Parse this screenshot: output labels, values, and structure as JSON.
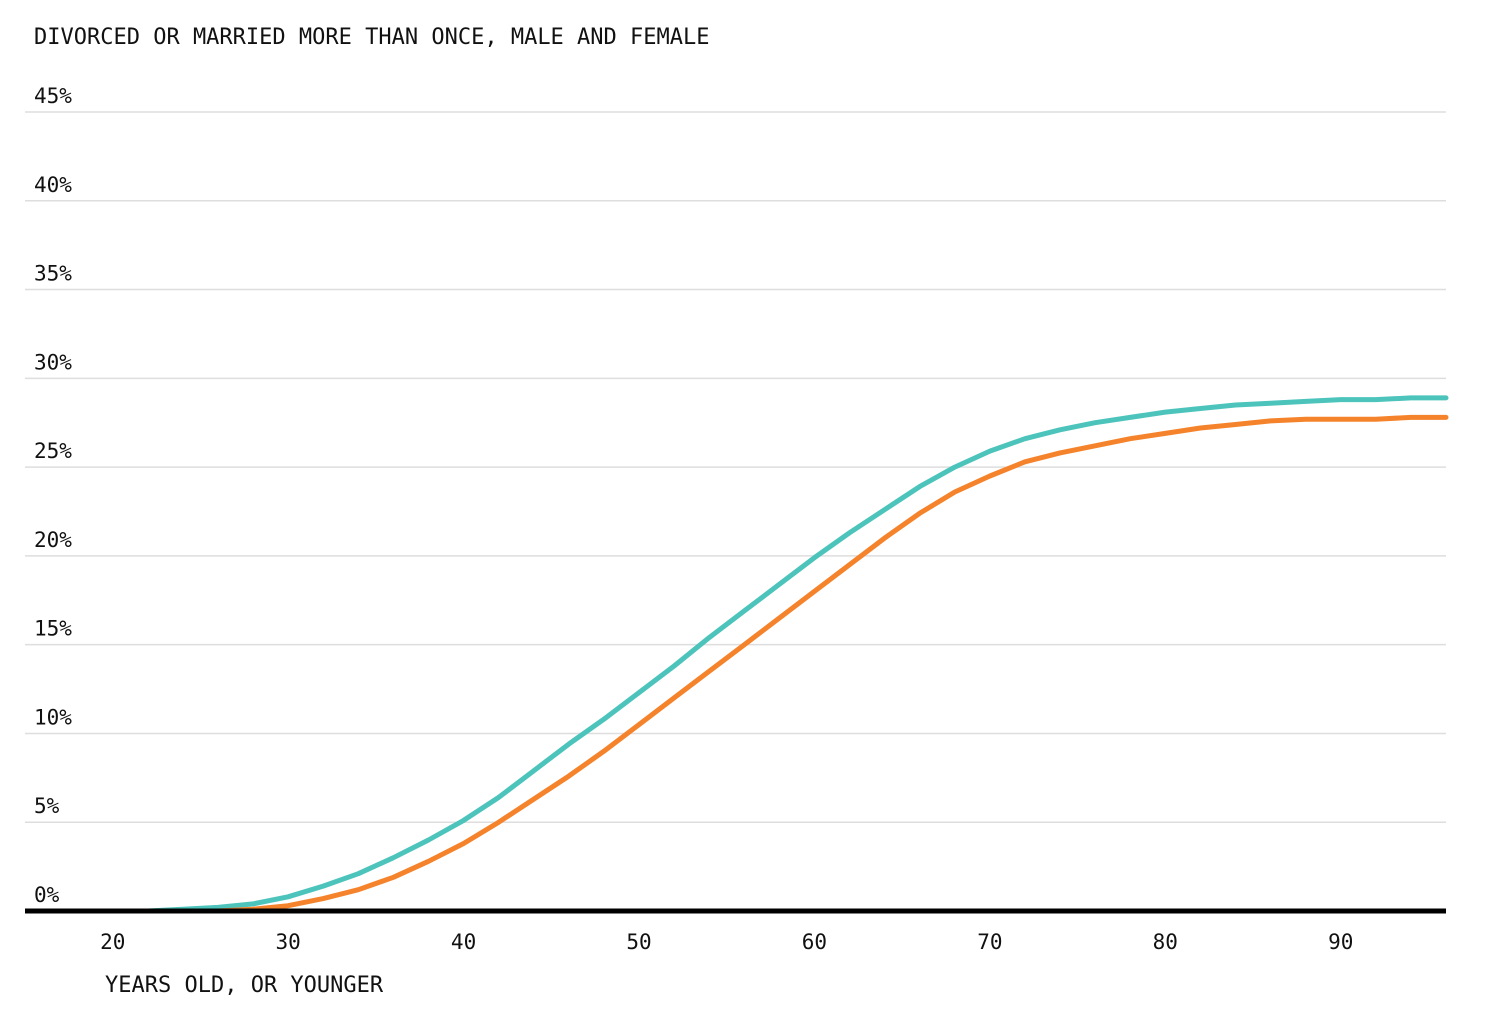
{
  "chart_data": {
    "type": "line",
    "title": "DIVORCED OR MARRIED MORE THAN ONCE, MALE AND FEMALE",
    "xlabel": "YEARS OLD, OR YOUNGER",
    "ylabel": "",
    "xlim": [
      15,
      96
    ],
    "ylim": [
      0,
      45
    ],
    "xticks": [
      20,
      30,
      40,
      50,
      60,
      70,
      80,
      90
    ],
    "yticks": [
      0,
      5,
      10,
      15,
      20,
      25,
      30,
      35,
      40,
      45
    ],
    "ytick_suffix": "%",
    "grid": true,
    "legend": "none",
    "series": [
      {
        "color": "#4cc4bc",
        "x": [
          20,
          22,
          24,
          26,
          28,
          30,
          32,
          34,
          36,
          38,
          40,
          42,
          44,
          46,
          48,
          50,
          52,
          54,
          56,
          58,
          60,
          62,
          64,
          66,
          68,
          70,
          72,
          74,
          76,
          78,
          80,
          82,
          84,
          86,
          88,
          90,
          92,
          94,
          96
        ],
        "values": [
          0.0,
          0.0,
          0.1,
          0.2,
          0.4,
          0.8,
          1.4,
          2.1,
          3.0,
          4.0,
          5.1,
          6.4,
          7.9,
          9.4,
          10.8,
          12.3,
          13.8,
          15.4,
          16.9,
          18.4,
          19.9,
          21.3,
          22.6,
          23.9,
          25.0,
          25.9,
          26.6,
          27.1,
          27.5,
          27.8,
          28.1,
          28.3,
          28.5,
          28.6,
          28.7,
          28.8,
          28.8,
          28.9,
          28.9
        ]
      },
      {
        "color": "#f5832b",
        "x": [
          20,
          22,
          24,
          26,
          28,
          30,
          32,
          34,
          36,
          38,
          40,
          42,
          44,
          46,
          48,
          50,
          52,
          54,
          56,
          58,
          60,
          62,
          64,
          66,
          68,
          70,
          72,
          74,
          76,
          78,
          80,
          82,
          84,
          86,
          88,
          90,
          92,
          94,
          96
        ],
        "values": [
          0.0,
          0.0,
          0.0,
          0.0,
          0.1,
          0.3,
          0.7,
          1.2,
          1.9,
          2.8,
          3.8,
          5.0,
          6.3,
          7.6,
          9.0,
          10.5,
          12.0,
          13.5,
          15.0,
          16.5,
          18.0,
          19.5,
          21.0,
          22.4,
          23.6,
          24.5,
          25.3,
          25.8,
          26.2,
          26.6,
          26.9,
          27.2,
          27.4,
          27.6,
          27.7,
          27.7,
          27.7,
          27.8,
          27.8
        ]
      }
    ]
  }
}
